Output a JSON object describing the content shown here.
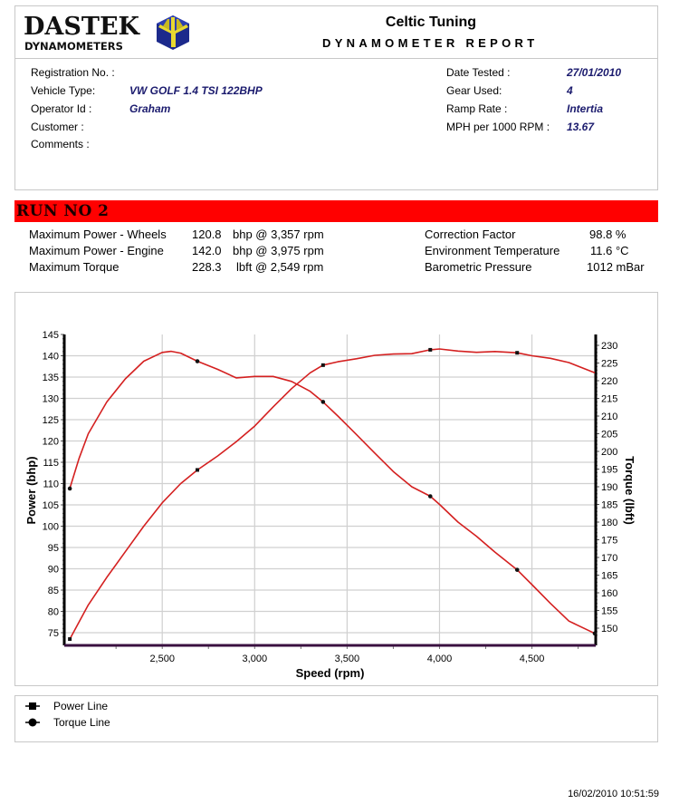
{
  "header": {
    "logo_main": "DASTEK",
    "logo_sub": "DYNAMOMETERS",
    "company": "Celtic Tuning",
    "report_title": "DYNAMOMETER REPORT"
  },
  "vehicle_info": {
    "left": [
      {
        "label": "Registration No. :",
        "value": ""
      },
      {
        "label": "Vehicle Type:",
        "value": "VW GOLF 1.4 TSI 122BHP"
      },
      {
        "label": "Operator Id :",
        "value": "Graham"
      },
      {
        "label": "Customer :",
        "value": ""
      },
      {
        "label": "Comments :",
        "value": ""
      }
    ],
    "right": [
      {
        "label": "Date Tested :",
        "value": "27/01/2010"
      },
      {
        "label": "Gear Used:",
        "value": "4"
      },
      {
        "label": "Ramp Rate :",
        "value": "Intertia"
      },
      {
        "label": "MPH per 1000 RPM :",
        "value": "13.67"
      }
    ]
  },
  "run": {
    "title": "RUN NO 2",
    "results": [
      {
        "label": "Maximum Power - Wheels",
        "value": "120.8",
        "unit": "bhp @ 3,357 rpm"
      },
      {
        "label": "Maximum Power - Engine",
        "value": "142.0",
        "unit": "bhp @ 3,975 rpm"
      },
      {
        "label": "Maximum Torque",
        "value": "228.3",
        "unit": "lbft @ 2,549 rpm"
      }
    ],
    "conditions": [
      {
        "label": "Correction Factor",
        "value": "98.8 %"
      },
      {
        "label": "Environment Temperature",
        "value": "11.6 °C"
      },
      {
        "label": "Barometric Pressure",
        "value": "1012 mBar"
      }
    ]
  },
  "legend": [
    {
      "label": "Power Line",
      "marker": "square"
    },
    {
      "label": "Torque Line",
      "marker": "circle"
    }
  ],
  "timestamp": "16/02/2010 10:51:59",
  "colors": {
    "line": "#d42020",
    "grid": "#d0d0d0",
    "axis": "#000000",
    "x_axis": "#3a1040",
    "run_bar": "#ff0000",
    "value_text": "#1b1b6e"
  },
  "chart_data": {
    "type": "line",
    "title": "",
    "xlabel": "Speed (rpm)",
    "ylabel": "Power (bhp)",
    "y2label": "Torque (lbft)",
    "xlim": [
      1970,
      4845
    ],
    "ylim": [
      72,
      145
    ],
    "y2lim": [
      147,
      231
    ],
    "x_ticks": [
      2500,
      3000,
      3500,
      4000,
      4500
    ],
    "x_tick_labels": [
      "2,500",
      "3,000",
      "3,500",
      "4,000",
      "4,500"
    ],
    "y_ticks": [
      75,
      80,
      85,
      90,
      95,
      100,
      105,
      110,
      115,
      120,
      125,
      130,
      135,
      140,
      145
    ],
    "y2_ticks": [
      150,
      155,
      160,
      165,
      170,
      175,
      180,
      185,
      190,
      195,
      200,
      205,
      210,
      215,
      220,
      225,
      230
    ],
    "grid": true,
    "legend_position": "bottom",
    "series": [
      {
        "name": "Power Line",
        "axis": "left",
        "marker": "square",
        "x": [
          2000,
          2050,
          2100,
          2200,
          2300,
          2400,
          2500,
          2600,
          2690,
          2800,
          2900,
          3000,
          3100,
          3200,
          3300,
          3370,
          3450,
          3550,
          3650,
          3750,
          3850,
          3950,
          4000,
          4100,
          4200,
          4300,
          4420,
          4500,
          4600,
          4700,
          4840
        ],
        "y": [
          73.5,
          77.5,
          81.5,
          88,
          94,
          100,
          105.5,
          110,
          113.2,
          116.5,
          119.8,
          123.5,
          128,
          132.3,
          136,
          137.8,
          138.6,
          139.3,
          140.1,
          140.4,
          140.5,
          141.4,
          141.6,
          141.1,
          140.8,
          141.0,
          140.7,
          140.0,
          139.4,
          138.4,
          136.0
        ],
        "markers_x": [
          2000,
          2690,
          3370,
          3950,
          4420
        ],
        "markers_y": [
          73.5,
          113.2,
          137.8,
          141.4,
          140.7
        ]
      },
      {
        "name": "Torque Line",
        "axis": "right",
        "marker": "circle",
        "x": [
          2000,
          2050,
          2100,
          2200,
          2300,
          2400,
          2500,
          2549,
          2600,
          2690,
          2800,
          2900,
          3000,
          3100,
          3200,
          3300,
          3370,
          3450,
          3550,
          3650,
          3750,
          3850,
          3950,
          4000,
          4100,
          4200,
          4300,
          4420,
          4500,
          4600,
          4700,
          4840
        ],
        "y": [
          189.5,
          198,
          205,
          214,
          220.5,
          225.5,
          228,
          228.3,
          227.8,
          225.5,
          223.2,
          220.8,
          221.2,
          221.2,
          219.8,
          217,
          214,
          210,
          204.8,
          199.5,
          194.3,
          190,
          187.3,
          185,
          180,
          176,
          171.5,
          166.5,
          162.3,
          157,
          152,
          148.5
        ],
        "markers_x": [
          2000,
          2690,
          3370,
          3950,
          4420,
          4840
        ],
        "markers_y": [
          189.5,
          225.5,
          214,
          187.3,
          166.5,
          148.5
        ]
      }
    ]
  }
}
